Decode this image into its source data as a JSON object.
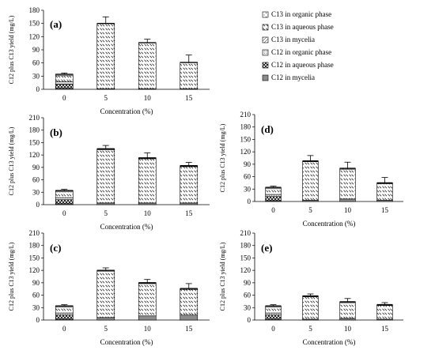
{
  "legend": [
    {
      "key": "c13_org",
      "label": "C13 in organic phase"
    },
    {
      "key": "c13_aq",
      "label": "C13 in aqueous phase"
    },
    {
      "key": "c13_my",
      "label": "C13 in mycelia"
    },
    {
      "key": "c12_org",
      "label": "C12 in organic phase"
    },
    {
      "key": "c12_aq",
      "label": "C12 in aqueous phase"
    },
    {
      "key": "c12_my",
      "label": "C12 in mycelia"
    }
  ],
  "chart_data": [
    {
      "type": "bar",
      "label": "(a)",
      "xlabel": "Concentration (%)",
      "ylabel": "C12 plus C13 yield (mg/L)",
      "categories": [
        "0",
        "5",
        "10",
        "15"
      ],
      "ylim": [
        0,
        180
      ],
      "yticks": [
        0,
        30,
        60,
        90,
        120,
        150,
        180
      ],
      "series": [
        {
          "name": "C12 in mycelia",
          "values": [
            2,
            1,
            1,
            1
          ]
        },
        {
          "name": "C12 in aqueous phase",
          "values": [
            10,
            0,
            0,
            0
          ]
        },
        {
          "name": "C12 in organic phase",
          "values": [
            5,
            0,
            0,
            0
          ]
        },
        {
          "name": "C13 in mycelia",
          "values": [
            0,
            0,
            0,
            0
          ]
        },
        {
          "name": "C13 in aqueous phase",
          "values": [
            14,
            149,
            105,
            60
          ]
        },
        {
          "name": "C13 in organic phase",
          "values": [
            3,
            0,
            0,
            0
          ]
        }
      ],
      "errors": [
        3,
        15,
        8,
        17
      ]
    },
    {
      "type": "bar",
      "label": "(b)",
      "xlabel": "Concentration (%)",
      "ylabel": "C12 plus C13 yield (mg/L)",
      "categories": [
        "0",
        "5",
        "10",
        "15"
      ],
      "ylim": [
        0,
        210
      ],
      "yticks": [
        0,
        30,
        60,
        90,
        120,
        150,
        180,
        210
      ],
      "series": [
        {
          "name": "C12 in mycelia",
          "values": [
            2,
            4,
            4,
            4
          ]
        },
        {
          "name": "C12 in aqueous phase",
          "values": [
            10,
            0,
            0,
            0
          ]
        },
        {
          "name": "C12 in organic phase",
          "values": [
            5,
            0,
            0,
            0
          ]
        },
        {
          "name": "C13 in mycelia",
          "values": [
            0,
            0,
            0,
            0
          ]
        },
        {
          "name": "C13 in aqueous phase",
          "values": [
            14,
            129,
            107,
            88
          ]
        },
        {
          "name": "C13 in organic phase",
          "values": [
            3,
            2,
            2,
            2
          ]
        }
      ],
      "errors": [
        3,
        8,
        12,
        8
      ]
    },
    {
      "type": "bar",
      "label": "(c)",
      "xlabel": "Concentration (%)",
      "ylabel": "C12 plus C13 yield (mg/L)",
      "categories": [
        "0",
        "5",
        "10",
        "15"
      ],
      "ylim": [
        0,
        210
      ],
      "yticks": [
        0,
        30,
        60,
        90,
        120,
        150,
        180,
        210
      ],
      "series": [
        {
          "name": "C12 in mycelia",
          "values": [
            2,
            6,
            10,
            12
          ]
        },
        {
          "name": "C12 in aqueous phase",
          "values": [
            10,
            0,
            0,
            0
          ]
        },
        {
          "name": "C12 in organic phase",
          "values": [
            5,
            0,
            0,
            0
          ]
        },
        {
          "name": "C13 in mycelia",
          "values": [
            0,
            0,
            0,
            0
          ]
        },
        {
          "name": "C13 in aqueous phase",
          "values": [
            14,
            112,
            78,
            62
          ]
        },
        {
          "name": "C13 in organic phase",
          "values": [
            3,
            2,
            2,
            2
          ]
        }
      ],
      "errors": [
        3,
        6,
        8,
        12
      ]
    },
    {
      "type": "bar",
      "label": "(d)",
      "xlabel": "Concentration (%)",
      "ylabel": "C12 plus C13 yield (mg/L)",
      "categories": [
        "0",
        "5",
        "10",
        "15"
      ],
      "ylim": [
        0,
        210
      ],
      "yticks": [
        0,
        30,
        60,
        90,
        120,
        150,
        180,
        210
      ],
      "series": [
        {
          "name": "C12 in mycelia",
          "values": [
            2,
            3,
            6,
            3
          ]
        },
        {
          "name": "C12 in aqueous phase",
          "values": [
            10,
            0,
            0,
            0
          ]
        },
        {
          "name": "C12 in organic phase",
          "values": [
            5,
            0,
            0,
            0
          ]
        },
        {
          "name": "C13 in mycelia",
          "values": [
            0,
            0,
            0,
            0
          ]
        },
        {
          "name": "C13 in aqueous phase",
          "values": [
            14,
            93,
            72,
            40
          ]
        },
        {
          "name": "C13 in organic phase",
          "values": [
            3,
            2,
            2,
            2
          ]
        }
      ],
      "errors": [
        3,
        13,
        15,
        13
      ]
    },
    {
      "type": "bar",
      "label": "(e)",
      "xlabel": "Concentration (%)",
      "ylabel": "C12 plus C13 yield (mg/L)",
      "categories": [
        "0",
        "5",
        "10",
        "15"
      ],
      "ylim": [
        0,
        210
      ],
      "yticks": [
        0,
        30,
        60,
        90,
        120,
        150,
        180,
        210
      ],
      "series": [
        {
          "name": "C12 in mycelia",
          "values": [
            2,
            2,
            4,
            2
          ]
        },
        {
          "name": "C12 in aqueous phase",
          "values": [
            10,
            0,
            0,
            0
          ]
        },
        {
          "name": "C12 in organic phase",
          "values": [
            5,
            0,
            0,
            0
          ]
        },
        {
          "name": "C13 in mycelia",
          "values": [
            0,
            0,
            0,
            0
          ]
        },
        {
          "name": "C13 in aqueous phase",
          "values": [
            14,
            54,
            38,
            33
          ]
        },
        {
          "name": "C13 in organic phase",
          "values": [
            3,
            2,
            2,
            2
          ]
        }
      ],
      "errors": [
        3,
        5,
        8,
        5
      ]
    }
  ]
}
